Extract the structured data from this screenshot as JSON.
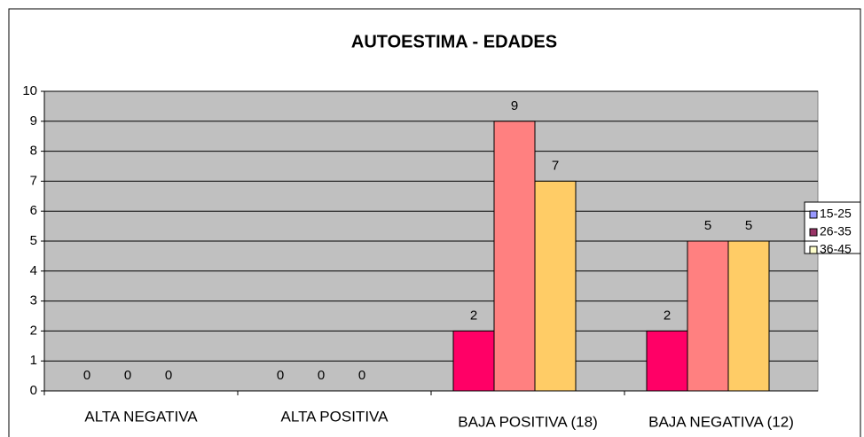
{
  "chart_data": {
    "type": "bar",
    "title": "AUTOESTIMA - EDADES",
    "categories": [
      "ALTA NEGATIVA",
      "ALTA POSITIVA",
      "BAJA POSITIVA (18)",
      "BAJA NEGATIVA (12)"
    ],
    "series": [
      {
        "name": "15-25",
        "color": "#ff0066",
        "legend_color": "#9999ff",
        "values": [
          0,
          0,
          2,
          2
        ]
      },
      {
        "name": "26-35",
        "color": "#ff8080",
        "legend_color": "#993366",
        "values": [
          0,
          0,
          9,
          5
        ]
      },
      {
        "name": "36-45",
        "color": "#ffcc66",
        "legend_color": "#ffffcc",
        "values": [
          0,
          0,
          7,
          5
        ]
      }
    ],
    "ylim": [
      0,
      10
    ],
    "yticks": [
      0,
      1,
      2,
      3,
      4,
      5,
      6,
      7,
      8,
      9,
      10
    ],
    "grid": true,
    "legend": "right"
  }
}
